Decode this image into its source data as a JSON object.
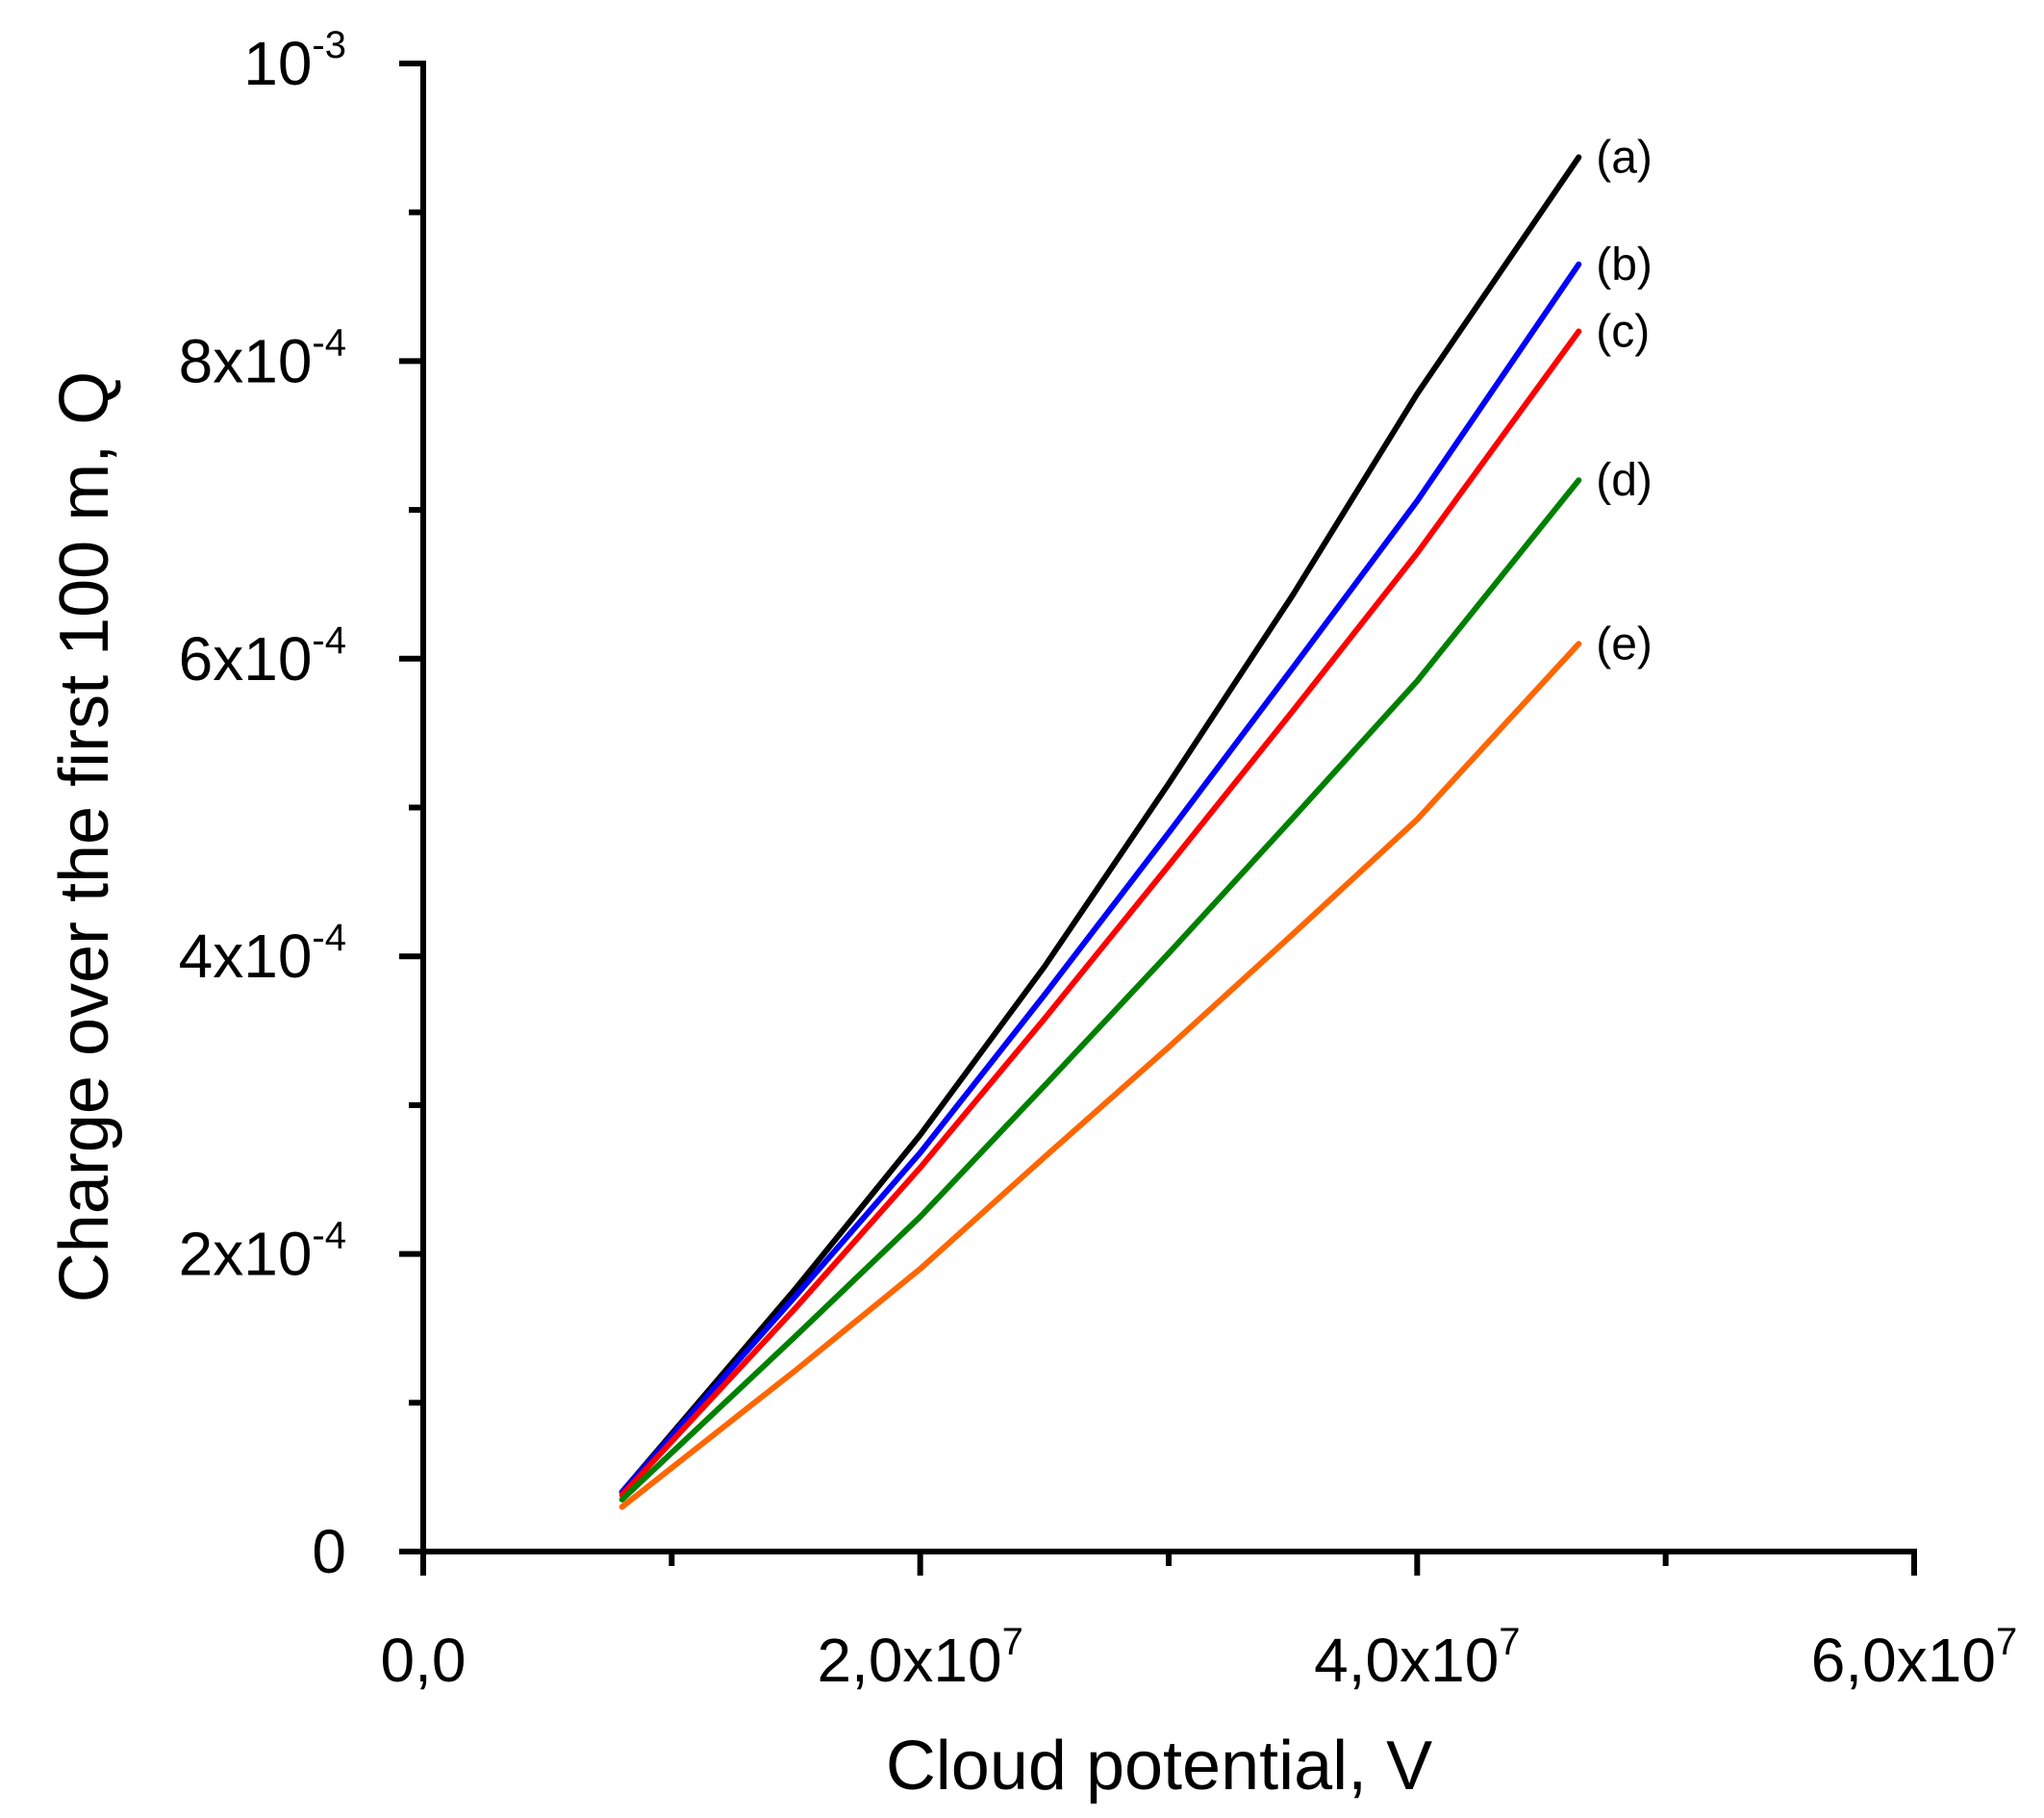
{
  "chart_data": {
    "type": "line",
    "title": "",
    "xlabel": "Cloud potential, V",
    "ylabel": "Charge over the first 100 m, Q",
    "xlim": [
      0,
      60000000
    ],
    "ylim": [
      0,
      0.001
    ],
    "grid": false,
    "x_ticks": [
      {
        "value": 0,
        "base": "0,0",
        "exp": ""
      },
      {
        "value": 20000000,
        "base": "2,0x10",
        "exp": "7"
      },
      {
        "value": 40000000,
        "base": "4,0x10",
        "exp": "7"
      },
      {
        "value": 60000000,
        "base": "6,0x10",
        "exp": "7"
      }
    ],
    "x_minor_ticks": [
      10000000,
      30000000,
      50000000
    ],
    "y_ticks": [
      {
        "value": 0,
        "base": "0",
        "exp": ""
      },
      {
        "value": 0.0002,
        "base": "2x10",
        "exp": "-4"
      },
      {
        "value": 0.0004,
        "base": "4x10",
        "exp": "-4"
      },
      {
        "value": 0.0006,
        "base": "6x10",
        "exp": "-4"
      },
      {
        "value": 0.0008,
        "base": "8x10",
        "exp": "-4"
      },
      {
        "value": 0.001,
        "base": "10",
        "exp": "-3"
      }
    ],
    "y_minor_ticks": [
      0.0001,
      0.0003,
      0.0005,
      0.0007,
      0.0009
    ],
    "series": [
      {
        "name": "(a)",
        "color": "#000000",
        "x": [
          8000000,
          15000000,
          20000000,
          25000000,
          30000000,
          35000000,
          40000000,
          46500000
        ],
        "y": [
          4e-05,
          0.000177,
          0.00028,
          0.000393,
          0.000516,
          0.000643,
          0.000778,
          0.000937
        ]
      },
      {
        "name": "(b)",
        "color": "#0000ff",
        "x": [
          8000000,
          15000000,
          20000000,
          25000000,
          30000000,
          35000000,
          40000000,
          46500000
        ],
        "y": [
          4e-05,
          0.000172,
          0.000268,
          0.000374,
          0.000483,
          0.000594,
          0.000706,
          0.000865
        ]
      },
      {
        "name": "(c)",
        "color": "#ff0000",
        "x": [
          8000000,
          15000000,
          20000000,
          25000000,
          30000000,
          35000000,
          40000000,
          46500000
        ],
        "y": [
          3.8e-05,
          0.000164,
          0.000258,
          0.000358,
          0.000461,
          0.000565,
          0.000671,
          0.00082
        ]
      },
      {
        "name": "(d)",
        "color": "#008000",
        "x": [
          8000000,
          15000000,
          20000000,
          25000000,
          30000000,
          35000000,
          40000000,
          46500000
        ],
        "y": [
          3.5e-05,
          0.000145,
          0.000225,
          0.000313,
          0.000402,
          0.000493,
          0.000585,
          0.00072
        ]
      },
      {
        "name": "(e)",
        "color": "#ff6600",
        "x": [
          8000000,
          15000000,
          20000000,
          25000000,
          30000000,
          35000000,
          40000000,
          46500000
        ],
        "y": [
          3e-05,
          0.000122,
          0.00019,
          0.000265,
          0.000339,
          0.000415,
          0.000492,
          0.00061
        ]
      }
    ]
  }
}
